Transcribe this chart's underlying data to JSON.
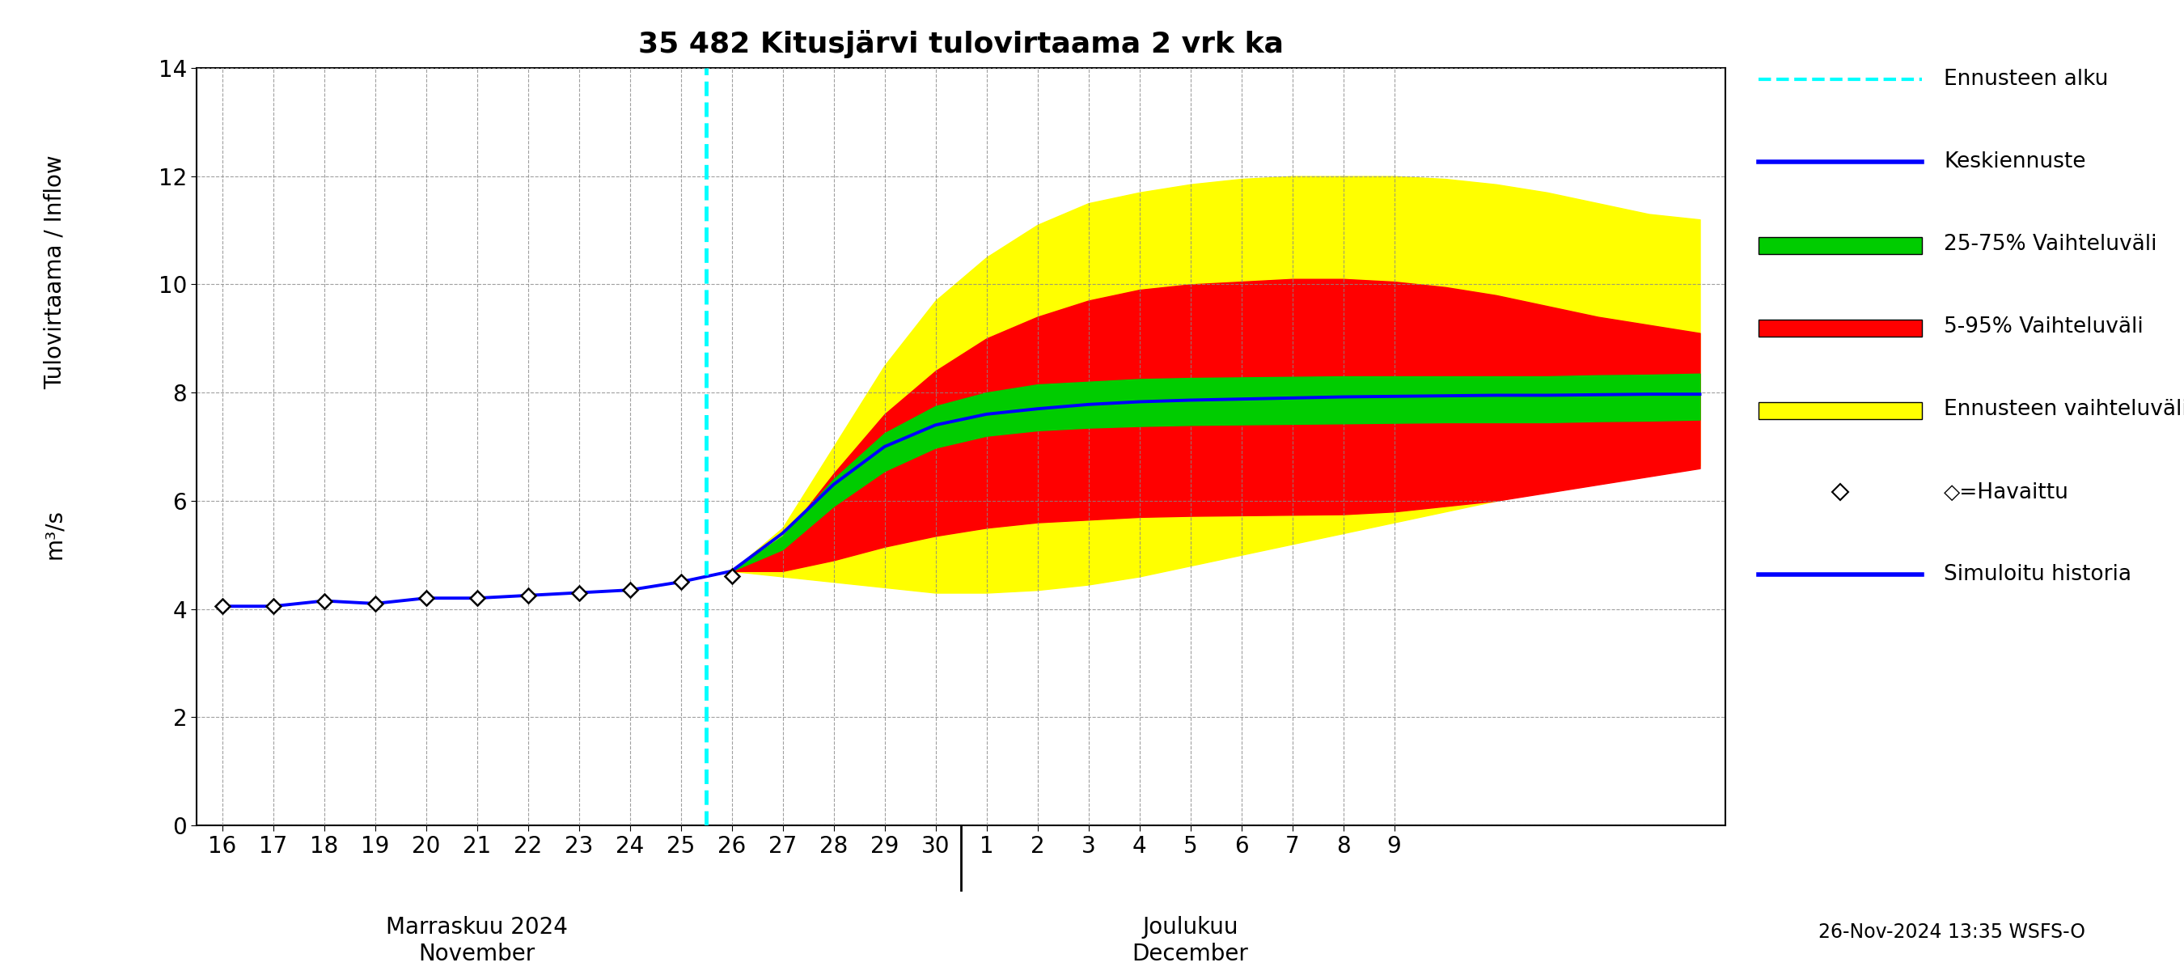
{
  "title": "35 482 Kitusjärvi tulovirtaama 2 vrk ka",
  "ylabel1": "Tulovirtaama / Inflow",
  "ylabel2": "m³/s",
  "xlabel_november": "Marraskuu 2024\nNovember",
  "xlabel_december": "Joulukuu\nDecember",
  "footer": "26-Nov-2024 13:35 WSFS-O",
  "ylim": [
    0,
    14
  ],
  "yticks": [
    0,
    2,
    4,
    6,
    8,
    10,
    12,
    14
  ],
  "vline_x": 25.5,
  "vline_color": "#00FFFF",
  "background_color": "#ffffff",
  "grid_color": "#888888",
  "observed_x": [
    16,
    17,
    18,
    19,
    20,
    21,
    22,
    23,
    24,
    25,
    26
  ],
  "observed_values": [
    4.05,
    4.05,
    4.15,
    4.1,
    4.2,
    4.2,
    4.25,
    4.3,
    4.35,
    4.5,
    4.6
  ],
  "simulated_history_x": [
    16,
    17,
    18,
    19,
    20,
    21,
    22,
    23,
    24,
    25,
    26,
    27,
    28,
    29,
    30,
    31,
    32,
    33,
    34,
    35,
    36,
    37,
    38,
    39,
    40,
    41,
    42,
    43,
    44,
    45
  ],
  "simulated_history_y": [
    4.05,
    4.05,
    4.15,
    4.1,
    4.2,
    4.2,
    4.25,
    4.3,
    4.35,
    4.5,
    4.7,
    5.4,
    6.3,
    7.0,
    7.4,
    7.6,
    7.7,
    7.78,
    7.83,
    7.86,
    7.88,
    7.9,
    7.92,
    7.93,
    7.94,
    7.95,
    7.95,
    7.96,
    7.97,
    7.97
  ],
  "band_x": [
    26,
    27,
    28,
    29,
    30,
    31,
    32,
    33,
    34,
    35,
    36,
    37,
    38,
    39,
    40,
    41,
    42,
    43,
    44,
    45
  ],
  "yellow_upper": [
    4.7,
    5.5,
    7.0,
    8.5,
    9.7,
    10.5,
    11.1,
    11.5,
    11.7,
    11.85,
    11.95,
    12.0,
    12.0,
    12.0,
    11.95,
    11.85,
    11.7,
    11.5,
    11.3,
    11.2
  ],
  "yellow_lower": [
    4.7,
    4.6,
    4.5,
    4.4,
    4.3,
    4.3,
    4.35,
    4.45,
    4.6,
    4.8,
    5.0,
    5.2,
    5.4,
    5.6,
    5.8,
    6.0,
    6.2,
    6.35,
    6.5,
    6.65
  ],
  "red_upper": [
    4.7,
    5.3,
    6.5,
    7.6,
    8.4,
    9.0,
    9.4,
    9.7,
    9.9,
    10.0,
    10.05,
    10.1,
    10.1,
    10.05,
    9.95,
    9.8,
    9.6,
    9.4,
    9.25,
    9.1
  ],
  "red_lower": [
    4.7,
    4.7,
    4.9,
    5.15,
    5.35,
    5.5,
    5.6,
    5.65,
    5.7,
    5.72,
    5.73,
    5.74,
    5.75,
    5.8,
    5.9,
    6.0,
    6.15,
    6.3,
    6.45,
    6.6
  ],
  "green_upper": [
    4.7,
    5.35,
    6.4,
    7.25,
    7.75,
    8.0,
    8.15,
    8.2,
    8.25,
    8.27,
    8.28,
    8.29,
    8.3,
    8.3,
    8.3,
    8.3,
    8.3,
    8.32,
    8.33,
    8.35
  ],
  "green_lower": [
    4.7,
    5.1,
    5.9,
    6.55,
    6.98,
    7.2,
    7.3,
    7.35,
    7.38,
    7.4,
    7.41,
    7.42,
    7.43,
    7.44,
    7.45,
    7.45,
    7.45,
    7.47,
    7.48,
    7.5
  ],
  "tick_labels_nov": [
    "16",
    "17",
    "18",
    "19",
    "20",
    "21",
    "22",
    "23",
    "24",
    "25",
    "26"
  ],
  "tick_labels_dec": [
    "27",
    "28",
    "29",
    "30",
    "1",
    "2",
    "3",
    "4",
    "5",
    "6",
    "7",
    "8",
    "9"
  ],
  "tick_x_nov": [
    16,
    17,
    18,
    19,
    20,
    21,
    22,
    23,
    24,
    25,
    26
  ],
  "tick_x_dec": [
    27,
    28,
    29,
    30,
    31,
    32,
    33,
    34,
    35,
    36,
    37,
    38,
    39
  ],
  "legend_entries": [
    "Ennusteen alku",
    "Keskiennuste",
    "25-75% Vaihteluväli",
    "5-95% Vaihteluväli",
    "Ennusteen vaihteluväli",
    "◇=Havaittu",
    "Simuloitu historia"
  ]
}
